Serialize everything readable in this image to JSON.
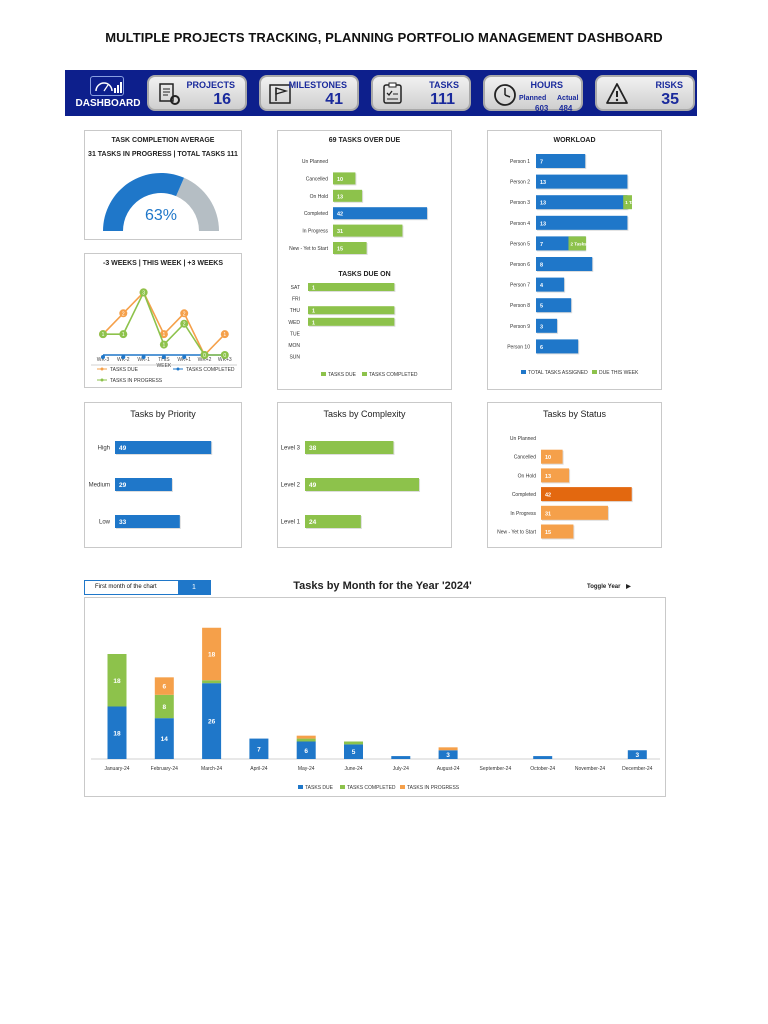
{
  "page": {
    "title": "MULTIPLE PROJECTS TRACKING, PLANNING PORTFOLIO MANAGEMENT DASHBOARD"
  },
  "banner": {
    "dashboard_label": "DASHBOARD",
    "kpis": [
      {
        "label": "PROJECTS",
        "value": "16",
        "icon": "clipboard-gear-icon"
      },
      {
        "label": "MILESTONES",
        "value": "41",
        "icon": "flag-icon"
      },
      {
        "label": "TASKS",
        "value": "111",
        "icon": "checklist-icon"
      },
      {
        "label": "HOURS",
        "planned_label": "Planned",
        "actual_label": "Actual",
        "planned": "603",
        "actual": "484",
        "icon": "clock-icon"
      },
      {
        "label": "RISKS",
        "value": "35",
        "icon": "warning-icon"
      }
    ],
    "colors": {
      "banner": "#0d1f8c",
      "text": "#1a2a9c"
    }
  },
  "completion": {
    "title": "TASK COMPLETION AVERAGE",
    "subtitle": "31 TASKS IN PROGRESS | TOTAL TASKS 111",
    "percent_label": "63%",
    "percent": 0.63
  },
  "weekly": {
    "title": "-3 WEEKS | THIS WEEK | +3 WEEKS",
    "legend": {
      "due": "TASKS DUE",
      "completed": "TASKS COMPLETED",
      "in_progress": "TASKS IN PROGRESS"
    }
  },
  "overdue": {
    "title": "69 TASKS OVER DUE"
  },
  "due_on": {
    "title": "TASKS DUE ON",
    "legend": {
      "due": "TASKS DUE",
      "completed": "TASKS COMPLETED"
    }
  },
  "workload": {
    "title": "WORKLOAD",
    "legend": {
      "assigned": "TOTAL TASKS ASSIGNED",
      "this_week": "DUE THIS WEEK"
    }
  },
  "priority": {
    "title": "Tasks by Priority"
  },
  "complexity": {
    "title": "Tasks by Complexity"
  },
  "status": {
    "title": "Tasks by Status"
  },
  "monthly": {
    "title": "Tasks by Month for the Year '2024'",
    "first_month_label": "First month of the chart",
    "first_month_value": "1",
    "toggle_label": "Toggle Year",
    "legend": {
      "due": "TASKS DUE",
      "completed": "TASKS COMPLETED",
      "in_progress": "TASKS IN PROGRESS"
    }
  },
  "chart_data": [
    {
      "id": "gauge",
      "type": "pie",
      "categories": [
        "Completed",
        "Remaining"
      ],
      "values": [
        63,
        37
      ],
      "colors": [
        "#1f77c9",
        "#b5bec4"
      ]
    },
    {
      "id": "weekly",
      "type": "line",
      "categories": [
        "WK-3",
        "WK-2",
        "WK-1",
        "THIS WEEK",
        "WK+1",
        "WK+2",
        "WK+3"
      ],
      "series": [
        {
          "name": "TASKS DUE",
          "values": [
            1,
            2,
            3,
            1,
            2,
            0,
            1
          ],
          "color": "#f5a04a"
        },
        {
          "name": "TASKS COMPLETED",
          "values": [
            0,
            0,
            0,
            0,
            0,
            0,
            0
          ],
          "color": "#1f77c9"
        },
        {
          "name": "TASKS IN PROGRESS",
          "values": [
            1,
            1,
            3,
            0.5,
            1.5,
            0,
            0
          ],
          "color": "#8dc24b"
        }
      ],
      "ylim": [
        0,
        3.5
      ]
    },
    {
      "id": "overdue",
      "type": "bar",
      "categories": [
        "Un Planned",
        "Cancelled",
        "On Hold",
        "Completed",
        "In Progress",
        "New - Yet to Start"
      ],
      "values": [
        null,
        10,
        13,
        42,
        31,
        15
      ],
      "colors": [
        "#8dc24b",
        "#8dc24b",
        "#8dc24b",
        "#1f77c9",
        "#8dc24b",
        "#8dc24b"
      ],
      "xlim": [
        0,
        50
      ]
    },
    {
      "id": "due_on",
      "type": "bar",
      "categories": [
        "SAT",
        "FRI",
        "THU",
        "WED",
        "TUE",
        "MON",
        "SUN"
      ],
      "values": [
        1,
        null,
        1,
        1,
        null,
        null,
        null
      ],
      "xlim": [
        0,
        1.1
      ]
    },
    {
      "id": "workload",
      "type": "bar",
      "categories": [
        "Person 1",
        "Person 2",
        "Person 3",
        "Person 4",
        "Person 5",
        "Person 6",
        "Person 7",
        "Person 8",
        "Person 9",
        "Person 10"
      ],
      "series": [
        {
          "name": "TOTAL TASKS ASSIGNED",
          "values": [
            7,
            13,
            13,
            13,
            7,
            8,
            4,
            5,
            3,
            6
          ]
        },
        {
          "name": "DUE THIS WEEK",
          "values": [
            null,
            null,
            1,
            null,
            2,
            null,
            null,
            null,
            null,
            null
          ],
          "labels": [
            "",
            "",
            "1 Task",
            "",
            "2 Tasks",
            "",
            "",
            "",
            "",
            ""
          ]
        }
      ],
      "xlim": [
        0,
        15.5
      ]
    },
    {
      "id": "priority",
      "type": "bar",
      "categories": [
        "High",
        "Medium",
        "Low"
      ],
      "values": [
        49,
        29,
        33
      ],
      "xlim": [
        0,
        55
      ]
    },
    {
      "id": "complexity",
      "type": "bar",
      "categories": [
        "Level 3",
        "Level 2",
        "Level 1"
      ],
      "values": [
        38,
        49,
        24
      ],
      "xlim": [
        0,
        55
      ]
    },
    {
      "id": "status",
      "type": "bar",
      "categories": [
        "Un Planned",
        "Cancelled",
        "On Hold",
        "Completed",
        "In Progress",
        "New - Yet to Start"
      ],
      "values": [
        null,
        10,
        13,
        42,
        31,
        15
      ],
      "colors": [
        "#f5a04a",
        "#f5a04a",
        "#f5a04a",
        "#e3680f",
        "#f5a04a",
        "#f5a04a"
      ],
      "xlim": [
        0,
        50
      ]
    },
    {
      "id": "monthly",
      "type": "bar",
      "categories": [
        "January-24",
        "February-24",
        "March-24",
        "April-24",
        "May-24",
        "June-24",
        "July-24",
        "August-24",
        "September-24",
        "October-24",
        "November-24",
        "December-24"
      ],
      "series": [
        {
          "name": "TASKS DUE",
          "values": [
            18,
            14,
            26,
            7,
            6,
            5,
            1,
            3,
            0,
            1,
            0,
            3
          ],
          "color": "#1f77c9"
        },
        {
          "name": "TASKS COMPLETED",
          "values": [
            18,
            8,
            1,
            0,
            1,
            1,
            0,
            0,
            0,
            0,
            0,
            0
          ],
          "color": "#8dc24b"
        },
        {
          "name": "TASKS IN PROGRESS",
          "values": [
            0,
            6,
            18,
            0,
            1,
            0,
            0,
            1,
            0,
            0,
            0,
            0
          ],
          "color": "#f5a04a"
        }
      ],
      "ylim": [
        0,
        48
      ]
    }
  ]
}
